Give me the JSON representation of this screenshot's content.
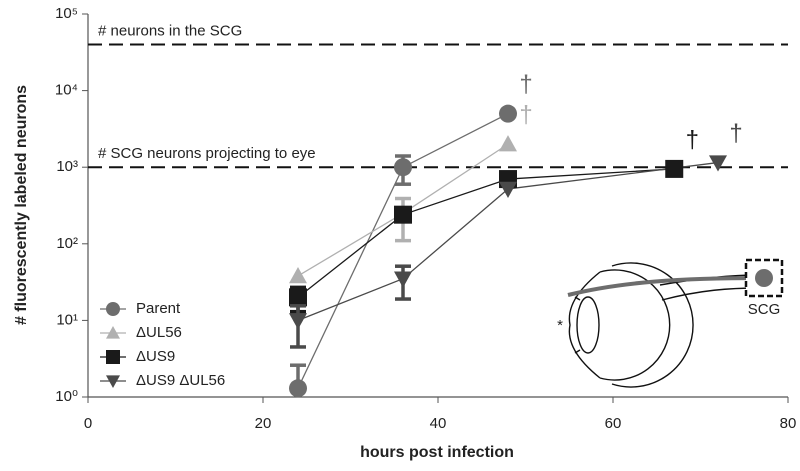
{
  "chart_data": {
    "type": "line",
    "x_label": "hours post infection",
    "y_label": "# fluorescently labeled neurons",
    "log_y": true,
    "xlim": [
      0,
      80
    ],
    "xticks": [
      0,
      20,
      40,
      60,
      80
    ],
    "ylim": [
      1,
      100000
    ],
    "yticks": [
      {
        "value": 1,
        "label": "10⁰"
      },
      {
        "value": 10,
        "label": "10¹"
      },
      {
        "value": 100,
        "label": "10²"
      },
      {
        "value": 1000,
        "label": "10³"
      },
      {
        "value": 10000,
        "label": "10⁴"
      },
      {
        "value": 100000,
        "label": "10⁵"
      }
    ],
    "legend": "lower left",
    "reference_lines": [
      {
        "value": 40000,
        "label": "# neurons in the SCG"
      },
      {
        "value": 1000,
        "label": "# SCG neurons projecting to eye"
      }
    ],
    "series": [
      {
        "name": "Parent",
        "color": "#6d6d6d",
        "marker": "circle",
        "x": [
          24,
          36,
          48
        ],
        "values": [
          1.3,
          1000,
          5000
        ],
        "errors": [
          1.3,
          400,
          null
        ],
        "end_label": "†"
      },
      {
        "name": "ΔUL56",
        "color": "#b0b0b0",
        "marker": "triangle-up",
        "x": [
          24,
          36,
          48
        ],
        "values": [
          38,
          250,
          2000
        ],
        "errors": [
          null,
          140,
          null
        ],
        "end_label": "†"
      },
      {
        "name": "ΔUS9",
        "color": "#1a1a1a",
        "marker": "square",
        "x": [
          24,
          36,
          48,
          67
        ],
        "values": [
          20,
          240,
          700,
          950
        ],
        "errors": [
          7,
          null,
          null,
          null
        ],
        "end_label": "†"
      },
      {
        "name": "ΔUS9 ΔUL56",
        "color": "#4a4a4a",
        "marker": "triangle-down",
        "x": [
          24,
          36,
          48,
          72
        ],
        "values": [
          10,
          35,
          520,
          1150
        ],
        "errors": [
          5.5,
          16,
          null,
          null
        ],
        "end_label": "†"
      }
    ],
    "inset_labels": [
      "SCG",
      "*"
    ]
  }
}
